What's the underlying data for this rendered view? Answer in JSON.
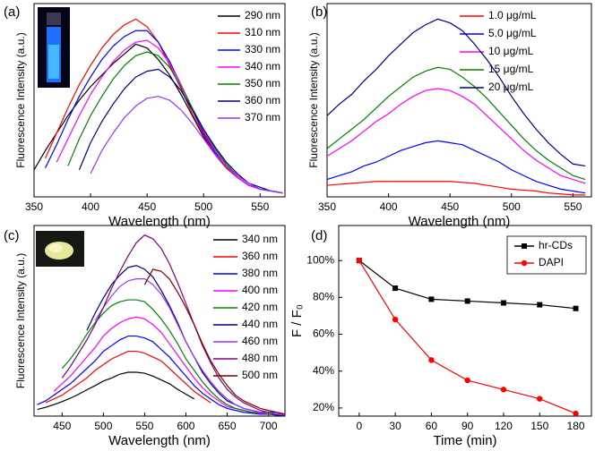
{
  "chart_data": [
    {
      "type": "line",
      "label": "(a)",
      "xlabel": "Wavelength (nm)",
      "ylabel": "Fluorescence Intensity (a.u.)",
      "legend": "upper right",
      "xlim": [
        350,
        572
      ],
      "ylim": [
        0,
        100
      ],
      "xticks": [
        350,
        400,
        450,
        500,
        550
      ],
      "x": [
        350,
        360,
        370,
        380,
        390,
        400,
        410,
        420,
        430,
        440,
        450,
        460,
        470,
        480,
        490,
        500,
        510,
        520,
        530,
        540,
        550,
        560,
        570
      ],
      "series": [
        {
          "name": "290 nm",
          "color": "#000000",
          "values": [
            14,
            24,
            33,
            42,
            50,
            57,
            63,
            69,
            74,
            79,
            77,
            71,
            63,
            53,
            42,
            31,
            22,
            15,
            10,
            6,
            4,
            3,
            2
          ]
        },
        {
          "name": "310 nm",
          "color": "#ff0000",
          "values": [
            null,
            20,
            33,
            46,
            58,
            68,
            77,
            84,
            89,
            92,
            88,
            80,
            68,
            56,
            43,
            32,
            22,
            15,
            10,
            6,
            4,
            3,
            2
          ]
        },
        {
          "name": "330 nm",
          "color": "#0000ff",
          "values": [
            null,
            15,
            27,
            40,
            52,
            62,
            71,
            78,
            83,
            86,
            86,
            80,
            70,
            58,
            45,
            33,
            23,
            16,
            10,
            6,
            4,
            3,
            2
          ]
        },
        {
          "name": "340 nm",
          "color": "#ff00ff",
          "values": [
            null,
            null,
            18,
            30,
            42,
            53,
            62,
            70,
            76,
            80,
            81,
            77,
            69,
            58,
            46,
            34,
            24,
            16,
            10,
            6,
            4,
            3,
            2
          ]
        },
        {
          "name": "350 nm",
          "color": "#008000",
          "values": [
            null,
            null,
            null,
            16,
            30,
            42,
            52,
            61,
            68,
            73,
            75,
            73,
            67,
            57,
            46,
            35,
            25,
            17,
            11,
            7,
            4,
            3,
            2
          ]
        },
        {
          "name": "360 nm",
          "color": "#000080",
          "values": [
            null,
            null,
            null,
            null,
            14,
            28,
            39,
            48,
            56,
            62,
            65,
            66,
            62,
            55,
            45,
            35,
            26,
            18,
            12,
            7,
            5,
            3,
            2
          ]
        },
        {
          "name": "370 nm",
          "color": "#9933ff",
          "values": [
            null,
            null,
            null,
            null,
            null,
            12,
            24,
            33,
            41,
            47,
            51,
            52,
            50,
            45,
            38,
            30,
            22,
            16,
            11,
            7,
            4,
            3,
            2
          ]
        }
      ]
    },
    {
      "type": "line",
      "label": "(b)",
      "xlabel": "Wavelength (nm)",
      "ylabel": "Fluorescence Intensity (a.u.)",
      "legend": "upper right",
      "xlim": [
        350,
        565
      ],
      "ylim": [
        0,
        100
      ],
      "xticks": [
        350,
        400,
        450,
        500,
        550
      ],
      "x": [
        350,
        360,
        370,
        380,
        390,
        400,
        410,
        420,
        430,
        440,
        450,
        460,
        470,
        480,
        490,
        500,
        510,
        520,
        530,
        540,
        550,
        560
      ],
      "series": [
        {
          "name": "1.0 μg/mL",
          "color": "#ff0000",
          "values": [
            6,
            6.5,
            7,
            7.5,
            8,
            8,
            8,
            8,
            8,
            8,
            8,
            7.5,
            7,
            6,
            5,
            4,
            3.5,
            3,
            2,
            1.5,
            1,
            1
          ]
        },
        {
          "name": "5.0 μg/mL",
          "color": "#0000ff",
          "values": [
            9,
            11,
            13,
            16,
            18,
            21,
            24,
            26,
            28,
            29,
            28,
            27,
            24,
            21,
            18,
            14,
            11,
            8,
            6,
            4,
            3,
            2
          ]
        },
        {
          "name": "10 μg/mL",
          "color": "#ff00ff",
          "values": [
            21,
            25,
            29,
            34,
            39,
            43,
            48,
            52,
            55,
            56,
            55,
            52,
            48,
            42,
            36,
            30,
            24,
            19,
            15,
            11,
            9,
            7
          ]
        },
        {
          "name": "15 μg/mL",
          "color": "#008000",
          "values": [
            25,
            30,
            35,
            40,
            46,
            52,
            57,
            62,
            65,
            67,
            66,
            62,
            57,
            51,
            44,
            37,
            30,
            24,
            19,
            15,
            11,
            9
          ]
        },
        {
          "name": "20 μg/mL",
          "color": "#000080",
          "values": [
            42,
            48,
            53,
            60,
            66,
            73,
            79,
            85,
            89,
            92,
            90,
            86,
            79,
            71,
            62,
            52,
            43,
            35,
            28,
            22,
            17,
            16
          ]
        }
      ]
    },
    {
      "type": "line",
      "label": "(c)",
      "xlabel": "Wavelength (nm)",
      "ylabel": "Fluorescence Intensity (a.u.)",
      "legend": "upper right",
      "xlim": [
        416,
        720
      ],
      "ylim": [
        0,
        100
      ],
      "xticks": [
        450,
        500,
        550,
        600,
        650,
        700
      ],
      "x": [
        420,
        430,
        440,
        450,
        460,
        470,
        480,
        490,
        500,
        510,
        520,
        530,
        540,
        550,
        560,
        570,
        580,
        590,
        600,
        610,
        620,
        630,
        640,
        650,
        660,
        670,
        680,
        690,
        700,
        710,
        720
      ],
      "series": [
        {
          "name": "340 nm",
          "color": "#000000",
          "values": [
            3.5,
            4.6,
            6,
            7.6,
            9.4,
            11.5,
            13.8,
            16,
            18.4,
            20,
            22,
            23,
            23,
            22.5,
            21,
            19,
            17,
            14,
            11.5,
            9,
            null,
            null,
            null,
            null,
            null,
            null,
            null,
            null,
            null,
            null,
            null
          ]
        },
        {
          "name": "360 nm",
          "color": "#ff0000",
          "values": [
            null,
            7,
            9,
            11,
            14,
            17,
            20,
            24,
            27,
            30,
            32,
            34,
            34,
            33,
            31,
            29,
            25,
            21,
            17,
            13,
            10,
            7,
            null,
            null,
            null,
            null,
            null,
            null,
            null,
            null,
            null
          ]
        },
        {
          "name": "380 nm",
          "color": "#0000ff",
          "values": [
            6,
            8,
            11,
            14,
            17,
            21,
            25,
            29,
            34,
            37,
            40,
            42,
            42,
            41,
            39,
            35,
            31,
            26,
            21,
            16,
            12,
            9,
            6,
            4,
            3,
            2,
            1.5,
            1,
            1,
            0.5,
            0.5
          ]
        },
        {
          "name": "400 nm",
          "color": "#ff00ff",
          "values": [
            null,
            null,
            13,
            17,
            21,
            26,
            31,
            36,
            42,
            46,
            49,
            51,
            52,
            51,
            48,
            44,
            38,
            32,
            26,
            20,
            15,
            11,
            8,
            5,
            4,
            3,
            2,
            1.5,
            1,
            1,
            0.5
          ]
        },
        {
          "name": "420 nm",
          "color": "#008000",
          "values": [
            null,
            null,
            null,
            25,
            30,
            36,
            43,
            49,
            54,
            58,
            60,
            61,
            61,
            60,
            56,
            51,
            45,
            38,
            30,
            24,
            18,
            13,
            9,
            6,
            4,
            3,
            2,
            2,
            1,
            1,
            1
          ]
        },
        {
          "name": "440 nm",
          "color": "#000080",
          "values": [
            null,
            null,
            null,
            null,
            null,
            null,
            45,
            54,
            62,
            69,
            74,
            78,
            79,
            77,
            73,
            66,
            58,
            49,
            39,
            31,
            23,
            17,
            12,
            8,
            6,
            4,
            3,
            2,
            2,
            1,
            1
          ]
        },
        {
          "name": "460 nm",
          "color": "#9933ff",
          "values": [
            null,
            null,
            null,
            null,
            null,
            null,
            null,
            50,
            57,
            63,
            68,
            71,
            72,
            72,
            69,
            64,
            57,
            48,
            39,
            31,
            24,
            18,
            13,
            9,
            6,
            4,
            3,
            2,
            2,
            1,
            1
          ]
        },
        {
          "name": "480 nm",
          "color": "#800080",
          "values": [
            null,
            null,
            null,
            20,
            26,
            33,
            40,
            48,
            57,
            67,
            76,
            84,
            91,
            95,
            93,
            88,
            80,
            70,
            59,
            48,
            37,
            28,
            20,
            14,
            10,
            7,
            5,
            3,
            2,
            2,
            1
          ]
        },
        {
          "name": "500 nm",
          "color": "#800000",
          "values": [
            null,
            null,
            null,
            null,
            null,
            null,
            null,
            null,
            null,
            null,
            null,
            null,
            null,
            69,
            77,
            76,
            72,
            65,
            57,
            48,
            38,
            29,
            22,
            16,
            11,
            8,
            6,
            4,
            3,
            2,
            1
          ]
        }
      ]
    },
    {
      "type": "line",
      "label": "(d)",
      "xlabel": "Time (min)",
      "ylabel": "F / F₀",
      "legend": "upper right",
      "legend_box": true,
      "xlim": [
        -17,
        193
      ],
      "ylim": [
        15.6,
        119
      ],
      "xticks": [
        0,
        30,
        60,
        90,
        120,
        150,
        180
      ],
      "yticks": [
        {
          "value": 20,
          "label": "20%"
        },
        {
          "value": 40,
          "label": "40%"
        },
        {
          "value": 60,
          "label": "60%"
        },
        {
          "value": 80,
          "label": "80%"
        },
        {
          "value": 100,
          "label": "100%"
        }
      ],
      "x": [
        0,
        30,
        60,
        90,
        120,
        150,
        180
      ],
      "series": [
        {
          "name": "hr-CDs",
          "color": "#000000",
          "marker": "square",
          "values": [
            100,
            85,
            79,
            78,
            77,
            76,
            74
          ]
        },
        {
          "name": "DAPI",
          "color": "#ff0000",
          "marker": "circle",
          "values": [
            100,
            68,
            46,
            35,
            30,
            25,
            17
          ]
        }
      ]
    }
  ]
}
